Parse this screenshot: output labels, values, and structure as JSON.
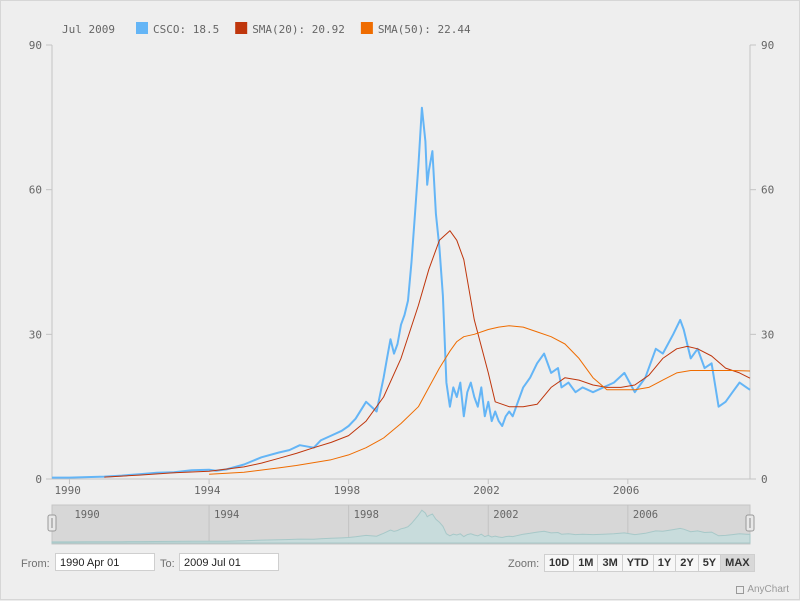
{
  "chart_data": {
    "type": "line",
    "title": "",
    "legend": {
      "date": "Jul 2009",
      "items": [
        {
          "name": "CSCO",
          "value": "18.5",
          "color": "#64b5f6",
          "series": "csco"
        },
        {
          "name": "SMA(20)",
          "value": "20.92",
          "color": "#bf360c",
          "series": "sma20"
        },
        {
          "name": "SMA(50)",
          "value": "22.44",
          "color": "#ef6c00",
          "series": "sma50"
        }
      ]
    },
    "x_range": [
      1989.5,
      2009.5
    ],
    "ylim": [
      0,
      90
    ],
    "y_ticks": [
      "0",
      "30",
      "60",
      "90"
    ],
    "y_tick_values": [
      0,
      30,
      60,
      90
    ],
    "x_ticks": [
      "1990",
      "1994",
      "1998",
      "2002",
      "2006"
    ],
    "x_tick_values": [
      1990,
      1994,
      1998,
      2002,
      2006
    ],
    "series": [
      {
        "key": "csco",
        "name": "CSCO",
        "color": "#64b5f6",
        "width": 2,
        "x": [
          1989.5,
          1990.0,
          1990.5,
          1991.0,
          1991.5,
          1992.0,
          1992.5,
          1993.0,
          1993.5,
          1994.0,
          1994.2,
          1994.5,
          1995.0,
          1995.5,
          1996.0,
          1996.3,
          1996.6,
          1997.0,
          1997.2,
          1997.5,
          1997.8,
          1998.0,
          1998.2,
          1998.5,
          1998.8,
          1999.0,
          1999.1,
          1999.2,
          1999.3,
          1999.4,
          1999.5,
          1999.6,
          1999.7,
          1999.8,
          1999.9,
          2000.0,
          2000.1,
          2000.2,
          2000.25,
          2000.3,
          2000.4,
          2000.5,
          2000.6,
          2000.7,
          2000.8,
          2000.9,
          2001.0,
          2001.1,
          2001.2,
          2001.3,
          2001.4,
          2001.5,
          2001.6,
          2001.7,
          2001.8,
          2001.9,
          2002.0,
          2002.1,
          2002.2,
          2002.3,
          2002.4,
          2002.5,
          2002.6,
          2002.7,
          2002.8,
          2002.9,
          2003.0,
          2003.2,
          2003.4,
          2003.6,
          2003.8,
          2004.0,
          2004.1,
          2004.3,
          2004.5,
          2004.7,
          2005.0,
          2005.3,
          2005.6,
          2005.9,
          2006.2,
          2006.5,
          2006.8,
          2007.0,
          2007.3,
          2007.5,
          2007.6,
          2007.8,
          2008.0,
          2008.2,
          2008.4,
          2008.6,
          2008.8,
          2009.0,
          2009.2,
          2009.4,
          2009.5
        ],
        "y": [
          0.3,
          0.3,
          0.4,
          0.5,
          0.7,
          1.0,
          1.3,
          1.4,
          1.8,
          1.9,
          1.7,
          2.0,
          3.0,
          4.5,
          5.5,
          6.0,
          7.0,
          6.5,
          8.0,
          9.0,
          10.0,
          11.0,
          12.5,
          16.0,
          14.0,
          21.0,
          25.0,
          29.0,
          26.0,
          28.0,
          32.0,
          34.0,
          37.0,
          45.0,
          55.0,
          65.0,
          77.0,
          70.0,
          61.0,
          64.0,
          68.0,
          55.0,
          48.0,
          38.0,
          20.0,
          15.0,
          19.0,
          17.0,
          20.0,
          13.0,
          18.0,
          20.0,
          17.0,
          15.0,
          19.0,
          13.0,
          16.0,
          12.0,
          14.0,
          12.0,
          11.0,
          13.0,
          14.0,
          13.0,
          15.0,
          17.0,
          19.0,
          21.0,
          24.0,
          26.0,
          22.0,
          23.0,
          19.0,
          20.0,
          18.0,
          19.0,
          18.0,
          19.0,
          20.0,
          22.0,
          18.0,
          21.0,
          27.0,
          26.0,
          30.0,
          33.0,
          31.0,
          25.0,
          27.0,
          23.0,
          24.0,
          15.0,
          16.0,
          18.0,
          20.0,
          19.0,
          18.5
        ]
      },
      {
        "key": "sma20",
        "name": "SMA(20)",
        "color": "#bf360c",
        "width": 1,
        "x": [
          1991.0,
          1992.0,
          1993.0,
          1994.0,
          1995.0,
          1995.5,
          1996.0,
          1996.5,
          1997.0,
          1997.5,
          1998.0,
          1998.5,
          1999.0,
          1999.5,
          2000.0,
          2000.3,
          2000.6,
          2000.9,
          2001.1,
          2001.3,
          2001.6,
          2002.0,
          2002.2,
          2002.6,
          2003.0,
          2003.4,
          2003.8,
          2004.2,
          2004.6,
          2005.0,
          2005.4,
          2005.8,
          2006.2,
          2006.6,
          2007.0,
          2007.4,
          2007.7,
          2008.0,
          2008.4,
          2008.8,
          2009.2,
          2009.5
        ],
        "y": [
          0.4,
          0.8,
          1.3,
          1.6,
          2.5,
          3.3,
          4.3,
          5.3,
          6.5,
          7.6,
          9.0,
          12.0,
          17.0,
          25.0,
          36.0,
          43.5,
          49.5,
          51.5,
          49.5,
          45.5,
          33.0,
          22.0,
          16.0,
          15.0,
          15.0,
          15.5,
          19.0,
          21.0,
          20.5,
          19.5,
          19.0,
          19.0,
          19.5,
          21.5,
          25.0,
          27.0,
          27.5,
          27.0,
          25.5,
          23.0,
          22.0,
          20.9
        ]
      },
      {
        "key": "sma50",
        "name": "SMA(50)",
        "color": "#ef6c00",
        "width": 1,
        "x": [
          1994.0,
          1995.0,
          1996.0,
          1996.5,
          1997.0,
          1997.5,
          1998.0,
          1998.5,
          1999.0,
          1999.5,
          2000.0,
          2000.3,
          2000.6,
          2000.9,
          2001.1,
          2001.3,
          2001.6,
          2002.0,
          2002.3,
          2002.6,
          2003.0,
          2003.4,
          2003.8,
          2004.2,
          2004.6,
          2005.0,
          2005.4,
          2005.8,
          2006.2,
          2006.6,
          2007.0,
          2007.4,
          2007.8,
          2008.2,
          2008.6,
          2009.0,
          2009.5
        ],
        "y": [
          1.0,
          1.4,
          2.3,
          2.8,
          3.4,
          4.0,
          5.0,
          6.5,
          8.5,
          11.5,
          15.0,
          19.0,
          23.0,
          26.5,
          28.5,
          29.5,
          30.0,
          31.0,
          31.5,
          31.8,
          31.5,
          30.5,
          29.5,
          28.0,
          25.0,
          21.0,
          18.5,
          18.5,
          18.5,
          19.0,
          20.5,
          22.0,
          22.5,
          22.5,
          22.5,
          22.5,
          22.4
        ]
      }
    ],
    "navigator": {
      "x_ticks": [
        "1990",
        "1994",
        "1998",
        "2002",
        "2006"
      ],
      "x_tick_values": [
        1990,
        1994,
        1998,
        2002,
        2006
      ]
    }
  },
  "range_selector": {
    "from_label": "From:",
    "from_value": "1990 Apr 01",
    "to_label": "To:",
    "to_value": "2009 Jul 01",
    "zoom_label": "Zoom:",
    "zoom_buttons": [
      "10D",
      "1M",
      "3M",
      "YTD",
      "1Y",
      "2Y",
      "5Y",
      "MAX"
    ],
    "active_zoom": "MAX"
  },
  "credits": "AnyChart"
}
